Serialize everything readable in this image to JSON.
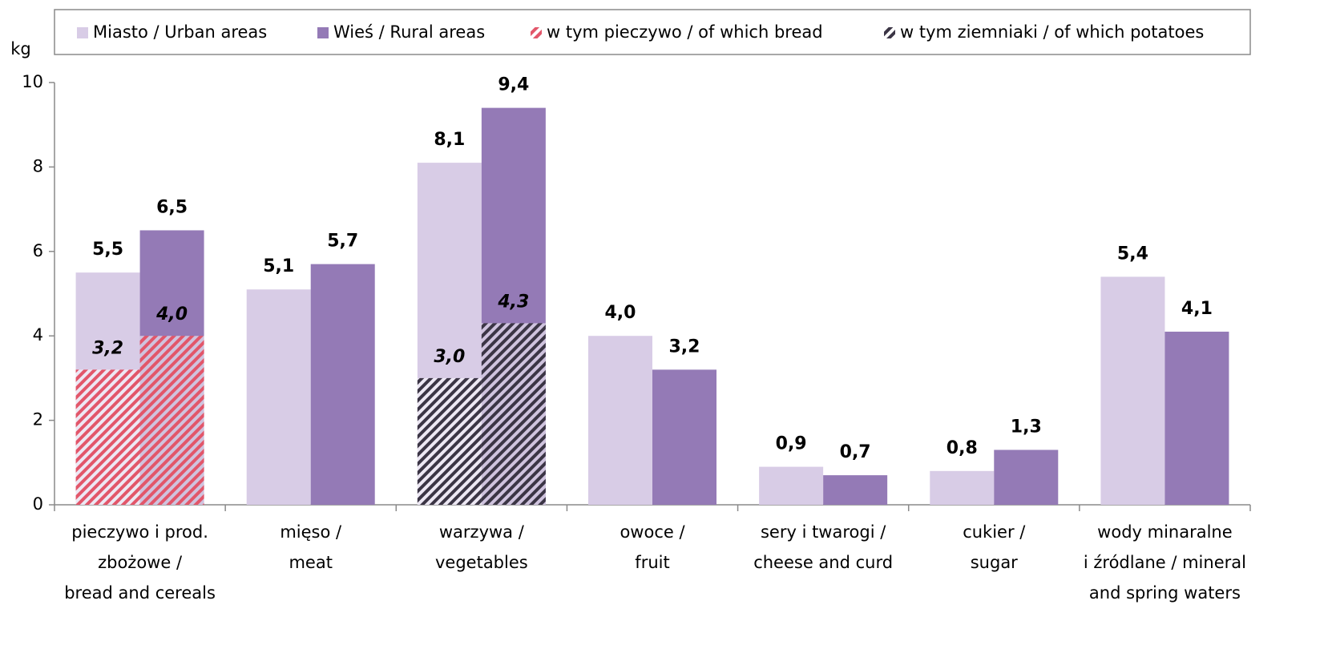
{
  "chart_data": {
    "type": "bar",
    "y_label": "kg",
    "categories": [
      [
        "pieczywo i prod.",
        "zbożowe /",
        "bread and cereals"
      ],
      [
        "mięso /",
        "meat"
      ],
      [
        "warzywa /",
        "vegetables"
      ],
      [
        "owoce /",
        "fruit"
      ],
      [
        "sery i twarogi /",
        "cheese and curd"
      ],
      [
        "cukier /",
        "sugar"
      ],
      [
        "wody minaralne",
        "i źródlane / mineral",
        "and spring waters"
      ]
    ],
    "series": [
      {
        "name": "Miasto / Urban areas",
        "color": "#d8cce6",
        "values": [
          5.5,
          5.1,
          8.1,
          4.0,
          0.9,
          0.8,
          5.4
        ],
        "value_labels": [
          "5,5",
          "5,1",
          "8,1",
          "4,0",
          "0,9",
          "0,8",
          "5,4"
        ]
      },
      {
        "name": "Wieś / Rural areas",
        "color": "#947ab6",
        "values": [
          6.5,
          5.7,
          9.4,
          3.2,
          0.7,
          1.3,
          4.1
        ],
        "value_labels": [
          "6,5",
          "5,7",
          "9,4",
          "3,2",
          "0,7",
          "1,3",
          "4,1"
        ]
      }
    ],
    "overlays": [
      {
        "name": "w tym pieczywo / of which bread",
        "color": "#e2566a",
        "urban_values": [
          3.2,
          null,
          null,
          null,
          null,
          null,
          null
        ],
        "urban_value_labels": [
          "3,2",
          null,
          null,
          null,
          null,
          null,
          null
        ],
        "rural_values": [
          4.0,
          null,
          null,
          null,
          null,
          null,
          null
        ],
        "rural_value_labels": [
          "4,0",
          null,
          null,
          null,
          null,
          null,
          null
        ]
      },
      {
        "name": "w tym ziemniaki / of which potatoes",
        "color": "#3b3545",
        "urban_values": [
          null,
          null,
          3.0,
          null,
          null,
          null,
          null
        ],
        "urban_value_labels": [
          null,
          null,
          "3,0",
          null,
          null,
          null,
          null
        ],
        "rural_values": [
          null,
          null,
          4.3,
          null,
          null,
          null,
          null
        ],
        "rural_value_labels": [
          null,
          null,
          "4,3",
          null,
          null,
          null,
          null
        ]
      }
    ],
    "ylim": [
      0,
      10
    ],
    "yticks": [
      0,
      2,
      4,
      6,
      8,
      10
    ],
    "grid": false
  }
}
